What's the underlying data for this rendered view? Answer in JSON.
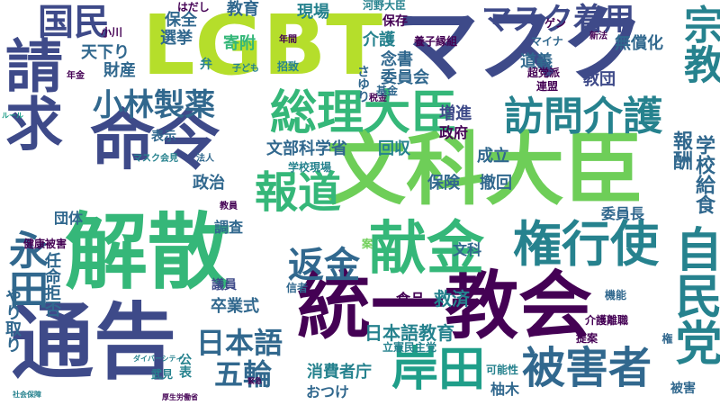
{
  "palette": {
    "dark_purple": "#440154",
    "indigo": "#482878",
    "blue": "#3e4a89",
    "steel": "#31688e",
    "teal": "#26828e",
    "green_teal": "#1f9e89",
    "green": "#35b779",
    "light_green": "#6ece58",
    "yellow_green": "#b5de2b"
  },
  "words": {
    "kaisan": "解散",
    "tsuukoku": "通告",
    "toitsu_kyokai": "統一教会",
    "monka_daijin": "文科大臣",
    "lgbt": "LGBT",
    "mask": "マスク",
    "seikyu": "請求",
    "meirei": "命令",
    "kokumin": "国民",
    "kenkin": "献金",
    "kenkoushi": "権行使",
    "kishida": "岸田",
    "higaisha": "被害者",
    "jiminto": "自民党",
    "sori_daijin": "総理大臣",
    "houmon_kaigo": "訪問介護",
    "houdou": "報道",
    "kobayashi": "小林製薬",
    "mask_chakuyou": "マスク着用",
    "shukyo": "宗教",
    "henkin": "返金",
    "nihongo": "日本語",
    "gorin": "五輪",
    "eikyu": "永田",
    "gakkou_kyushoku": "学校給食",
    "houshu": "報酬",
    "nihongo_kyoiku": "日本語教育",
    "mombukagakusho": "文部科学省",
    "kyuusai": "救済",
    "sotsugyoushiki": "卒業式",
    "shohisha": "消費者庁",
    "chikara": "力",
    "yaritori": "やり取り",
    "ninmei": "任命拒否",
    "kokkai": "国会",
    "futo": "不当",
    "hoken": "保険",
    "seiritsu": "成立",
    "seifu": "政府",
    "zoushin": "増進",
    "kyoudan": "教団",
    "dougi": "道義",
    "iinkai": "委員会",
    "nenshou": "念書",
    "kaigo": "介護",
    "kifu": "寄附",
    "senkyo": "選挙",
    "hosho": "保全",
    "zaisan": "財産",
    "tenka": "天下り",
    "kyouiku": "教育",
    "genba": "現場",
    "hozon": "保存",
    "mushoka": "無償化",
    "kyouiku_jikou": "教育",
    "kouno": "河野大臣",
    "yashi": "養子縁組",
    "hyouji": "表示",
    "seiji": "政治",
    "chousa": "調査",
    "dantai": "団体",
    "bunka": "文科",
    "tekkai": "撤回",
    "kaishu": "回収",
    "iinchou": "委員長",
    "gakkou_genba": "学校現場",
    "kishi": "岸",
    "shokuhin": "食品",
    "ouotsuke": "おつけ",
    "yuzuki": "柚木",
    "higai": "被害",
    "giin": "議員",
    "kouhyou": "公表",
    "takeshi": "武見",
    "kanou": "可能性",
    "kikan": "機能",
    "kenkou_higai": "健康被害",
    "rikken": "立憲民主党",
    "houjin": "法人",
    "kenshou": "計上",
    "shinsha": "信者",
    "kyoukai": "教会",
    "kokuchi": "告知",
    "tsuika": "追加",
    "kaigo_rishoku": "介護離職",
    "teian": "提案",
    "an": "案",
    "ken": "権",
    "shikaku": "資格",
    "mask_kaisho": "マスク会見",
    "kaiken": "会見",
    "kaigi": "会議",
    "joshi": "女性",
    "kyouin": "教員",
    "nenkin": "年金",
    "shougai": "障害",
    "koyou": "雇用",
    "zeikin": "税金",
    "genkin": "基金",
    "gakkou_kyoiku": "学校教育",
    "hakkou": "発行",
    "gijiroku": "議事録",
    "kouka": "効果",
    "ikou": "意向",
    "chouhen": "中止",
    "renmei": "連盟",
    "sannen": "三年",
    "choutatsu": "招致",
    "bengo": "弁",
    "kodomo": "子ども",
    "nenkan": "年間",
    "gen": "ゲン",
    "shinpou": "新法",
    "keiyaku": "契約",
    "mynumber": "マイナ",
    "houdou_sha": "報道",
    "chou": "超党派",
    "kaisei": "改正",
    "kinkyuu": "緊急",
    "kokuren": "国連",
    "kougai": "公害",
    "iryou": "医療",
    "kenri": "権利",
    "hashi": "はだし",
    "kowa": "小川",
    "sukiyu": "さゆり",
    "rule": "ルール",
    "chiji": "知事",
    "ryouyou": "療養",
    "shakai_hoshou": "社会保障",
    "kousei": "厚生労働省",
    "yakushoku": "役職",
    "taishi": "対応",
    "kokumin_2": "国民",
    "daibashi": "ダイバーシティー",
    "gen_hou": "源泉",
    "shouhi": "少子",
    "kyouyou": "共有",
    "jikkou": "実効性",
    "mirai": "見直し",
    "kokkai_giin": "国会議員",
    "yuuki": "指示",
    "kenpo": "憲法",
    "kodomo_2": "子どもたち",
    "shokuhin_2": "食品",
    "uriage": "売上",
    "kiroku": "記事",
    "kokushi": "国際",
    "shien": "支援",
    "hogo": "保護者",
    "kyoujin": "強化",
    "nenshi": "年齢",
    "jinken": "人権",
    "sho": "省",
    "ministry": "官僚",
    "sekinin": "責任",
    "gimu": "義務",
    "hiyou": "費用",
    "entry": "日本",
    "kankyou": "環境",
    "kettei": "決定",
    "jouhou": "情報",
    "kyouka": "教科",
    "ryuugaku": "留学",
    "nyuugaku": "入学",
    "dotai": "同体",
    "buraku": "部落",
    "risou": "理想",
    "kouchou": "校長",
    "ohanashi": "お話",
    "seigen": "制限",
    "shiki": "指揮",
    "shinsei": "申請",
    "kengen": "権限",
    "kenkyu": "研究",
    "bunkazai": "文化",
    "kansen": "感染",
    "kokushin": "国審",
    "taiou": "対応",
    "zaidan": "財団",
    "fuzei": "不正",
    "koutsuu": "交通",
    "shokumu": "職務",
    "gaiyou": "概要",
    "ryoushi": "両者",
    "ippan": "一般",
    "koukai": "公開",
    "seikatsu": "生活",
    "toushi": "投資",
    "bunri": "分離",
    "kaitou": "回答",
    "kaikaku": "改革",
    "suishin": "推進",
    "tsuuchi": "通知",
    "kyuuyo": "給与",
    "ken_kou": "健康",
    "kinshi": "禁止",
    "dainin": "代人",
    "sabetsu": "差別",
    "soudan": "相談",
    "mokuhyou": "目標",
    "kouza": "口座",
    "kyuushoku": "給食",
    "yuushou": "有償",
    "ikusei": "育成",
    "shidou": "指導",
    "mondai": "問題",
    "jitai": "自体",
    "nyuuin": "入院",
    "sekkyoku": "積極",
    "koubo": "公募",
    "toshin": "答申",
    "shoumei": "証明",
    "houkoku": "報告",
    "kaiketsu": "解決",
    "kansa": "監査",
    "shinri": "審理",
    "sanka": "参加",
    "houritsu": "法律",
    "kitei": "規定",
    "tousha": "当事者",
    "shuushi": "収支",
    "seido": "制度",
    "hanketsu": "判決",
    "yuusen": "優先",
    "hatsugen": "発言",
    "shakai": "社会",
    "keikaku": "計画",
    "genzai": "現在",
    "shuutoku": "取得",
    "kouhei": "公平",
    "rieki": "利益",
    "shiyou": "使用",
    "kisoku": "規則",
    "hyouka": "評価",
    "kaizen": "改善",
    "jisshi": "実施",
    "toukei": "統計",
    "yosan": "予算",
    "kenshin": "健診",
    "bouei": "防衛",
    "yuushi": "融資",
    "ryouri": "料理",
    "kanri": "管理",
    "ouen": "応援",
    "hantai": "反対",
    "sansei": "賛成",
    "kiken": "危険",
    "anzen": "安全",
    "kenkou": "健康",
    "shien_2": "支援"
  }
}
